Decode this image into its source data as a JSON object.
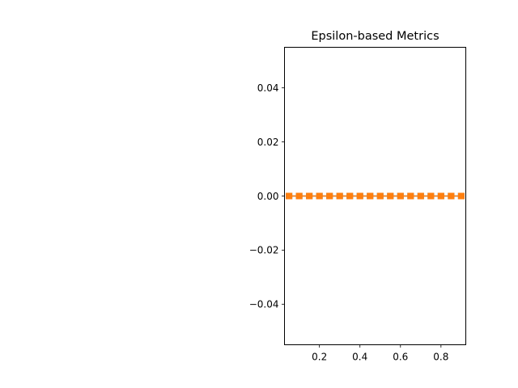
{
  "chart_data": {
    "type": "line",
    "title": "Epsilon-based Metrics",
    "xlabel": "",
    "ylabel": "",
    "xlim": [
      0.0275,
      0.9225
    ],
    "ylim": [
      -0.055,
      0.055
    ],
    "xticks": [
      {
        "value": 0.2,
        "label": "0.2"
      },
      {
        "value": 0.4,
        "label": "0.4"
      },
      {
        "value": 0.6,
        "label": "0.6"
      },
      {
        "value": 0.8,
        "label": "0.8"
      }
    ],
    "yticks": [
      {
        "value": 0.04,
        "label": "0.04"
      },
      {
        "value": 0.02,
        "label": "0.02"
      },
      {
        "value": 0.0,
        "label": "0.00"
      },
      {
        "value": -0.02,
        "label": "−0.02"
      },
      {
        "value": -0.04,
        "label": "−0.04"
      }
    ],
    "grid": false,
    "series": [
      {
        "color": "#1f77b4",
        "marker": "square",
        "x": [
          0.05,
          0.1,
          0.15,
          0.2,
          0.25,
          0.3,
          0.35,
          0.4,
          0.45,
          0.5,
          0.55,
          0.6,
          0.65,
          0.7,
          0.75,
          0.8,
          0.85,
          0.9
        ],
        "y": [
          0,
          0,
          0,
          0,
          0,
          0,
          0,
          0,
          0,
          0,
          0,
          0,
          0,
          0,
          0,
          0,
          0,
          0
        ]
      },
      {
        "color": "#ff7f0e",
        "marker": "square",
        "x": [
          0.05,
          0.1,
          0.15,
          0.2,
          0.25,
          0.3,
          0.35,
          0.4,
          0.45,
          0.5,
          0.55,
          0.6,
          0.65,
          0.7,
          0.75,
          0.8,
          0.85,
          0.9
        ],
        "y": [
          0,
          0,
          0,
          0,
          0,
          0,
          0,
          0,
          0,
          0,
          0,
          0,
          0,
          0,
          0,
          0,
          0,
          0
        ]
      }
    ]
  }
}
